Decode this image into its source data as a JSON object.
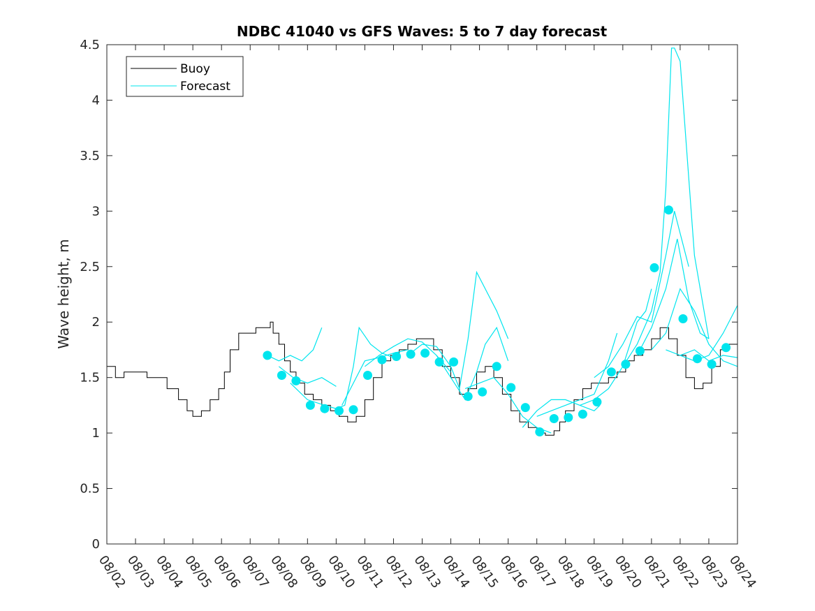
{
  "chart_data": {
    "type": "line",
    "title": "NDBC 41040 vs GFS Waves: 5 to 7 day forecast",
    "xlabel": "",
    "ylabel": "Wave height, m",
    "x_unit": "days since 08/02",
    "xlim": [
      0,
      22
    ],
    "ylim": [
      0,
      4.5
    ],
    "y_ticks": [
      0,
      0.5,
      1,
      1.5,
      2,
      2.5,
      3,
      3.5,
      4,
      4.5
    ],
    "y_tick_labels": [
      "0",
      "0.5",
      "1",
      "1.5",
      "2",
      "2.5",
      "3",
      "3.5",
      "4",
      "4.5"
    ],
    "x_ticks": [
      0,
      1,
      2,
      3,
      4,
      5,
      6,
      7,
      8,
      9,
      10,
      11,
      12,
      13,
      14,
      15,
      16,
      17,
      18,
      19,
      20,
      21,
      22
    ],
    "x_tick_labels": [
      "08/02",
      "08/03",
      "08/04",
      "08/05",
      "08/06",
      "08/07",
      "08/08",
      "08/09",
      "08/10",
      "08/11",
      "08/12",
      "08/13",
      "08/14",
      "08/15",
      "08/16",
      "08/17",
      "08/18",
      "08/19",
      "08/20",
      "08/21",
      "08/22",
      "08/23",
      "08/24"
    ],
    "legend": {
      "position": "top-left",
      "entries": [
        {
          "label": "Buoy",
          "color": "#000000"
        },
        {
          "label": "Forecast",
          "color": "#00e5ee"
        }
      ]
    },
    "colors": {
      "buoy": "#000000",
      "forecast": "#00e5ee",
      "axes": "#262626"
    },
    "buoy": {
      "x": [
        0,
        0.3,
        0.6,
        1.0,
        1.4,
        1.8,
        2.1,
        2.5,
        2.8,
        3.0,
        3.3,
        3.6,
        3.9,
        4.1,
        4.3,
        4.6,
        4.9,
        5.2,
        5.5,
        5.7,
        5.8,
        6.0,
        6.2,
        6.4,
        6.6,
        6.9,
        7.2,
        7.5,
        7.8,
        8.1,
        8.4,
        8.7,
        9.0,
        9.3,
        9.6,
        9.9,
        10.2,
        10.5,
        10.8,
        11.1,
        11.4,
        11.7,
        12.0,
        12.3,
        12.6,
        12.9,
        13.2,
        13.5,
        13.8,
        14.1,
        14.4,
        14.7,
        15.0,
        15.3,
        15.6,
        15.8,
        16.0,
        16.3,
        16.6,
        16.9,
        17.2,
        17.5,
        17.8,
        18.1,
        18.4,
        18.7,
        19.0,
        19.3,
        19.6,
        19.9,
        20.2,
        20.5,
        20.8,
        21.1,
        21.4,
        21.7,
        22.0
      ],
      "y": [
        1.6,
        1.5,
        1.55,
        1.55,
        1.5,
        1.5,
        1.4,
        1.3,
        1.2,
        1.15,
        1.2,
        1.3,
        1.4,
        1.55,
        1.75,
        1.9,
        1.9,
        1.95,
        1.95,
        2.0,
        1.9,
        1.8,
        1.65,
        1.55,
        1.45,
        1.35,
        1.3,
        1.25,
        1.2,
        1.15,
        1.1,
        1.15,
        1.3,
        1.5,
        1.65,
        1.7,
        1.75,
        1.8,
        1.85,
        1.85,
        1.75,
        1.6,
        1.5,
        1.35,
        1.4,
        1.55,
        1.6,
        1.5,
        1.35,
        1.2,
        1.1,
        1.05,
        1.0,
        0.98,
        1.02,
        1.1,
        1.2,
        1.3,
        1.4,
        1.45,
        1.45,
        1.5,
        1.55,
        1.65,
        1.7,
        1.75,
        1.85,
        1.95,
        1.85,
        1.7,
        1.5,
        1.4,
        1.45,
        1.6,
        1.75,
        1.8,
        1.8
      ]
    },
    "forecast_series": [
      {
        "name": "run1",
        "x": [
          5.6,
          6.0,
          6.4,
          6.8,
          7.2,
          7.5
        ],
        "y": [
          1.7,
          1.65,
          1.7,
          1.65,
          1.75,
          1.95
        ]
      },
      {
        "name": "run2",
        "x": [
          6.0,
          6.5,
          7.0,
          7.5,
          8.0
        ],
        "y": [
          1.6,
          1.5,
          1.45,
          1.5,
          1.42
        ]
      },
      {
        "name": "run3",
        "x": [
          6.4,
          7.0,
          7.6,
          8.0,
          8.3,
          8.6,
          8.8,
          9.2,
          9.6,
          10.0
        ],
        "y": [
          1.45,
          1.3,
          1.25,
          1.22,
          1.25,
          1.6,
          1.95,
          1.8,
          1.72,
          1.68
        ]
      },
      {
        "name": "run4",
        "x": [
          8.2,
          8.6,
          9.0,
          9.5,
          10.0,
          10.5
        ],
        "y": [
          1.25,
          1.45,
          1.65,
          1.68,
          1.72,
          1.75
        ]
      },
      {
        "name": "run5",
        "x": [
          9.0,
          9.5,
          10.0,
          10.5,
          11.0,
          11.5,
          12.0
        ],
        "y": [
          1.6,
          1.7,
          1.78,
          1.85,
          1.82,
          1.7,
          1.55
        ]
      },
      {
        "name": "run6",
        "x": [
          10.5,
          11.0,
          11.5,
          12.0,
          12.3,
          12.6,
          12.9,
          13.3,
          13.6,
          14.0
        ],
        "y": [
          1.7,
          1.8,
          1.78,
          1.6,
          1.4,
          1.85,
          2.45,
          2.25,
          2.1,
          1.85
        ]
      },
      {
        "name": "run7",
        "x": [
          11.5,
          12.0,
          12.5,
          12.9,
          13.2,
          13.6,
          14.0
        ],
        "y": [
          1.7,
          1.5,
          1.3,
          1.55,
          1.8,
          1.95,
          1.65
        ]
      },
      {
        "name": "run8",
        "x": [
          12.5,
          13.0,
          13.5,
          14.0,
          14.5,
          15.0,
          15.5
        ],
        "y": [
          1.4,
          1.45,
          1.5,
          1.35,
          1.15,
          1.05,
          1.0
        ]
      },
      {
        "name": "run9",
        "x": [
          14.5,
          15.0,
          15.5,
          16.0,
          16.5,
          17.0,
          17.2
        ],
        "y": [
          1.05,
          1.2,
          1.3,
          1.3,
          1.25,
          1.2,
          1.25
        ]
      },
      {
        "name": "run10",
        "x": [
          15.0,
          15.5,
          16.0,
          16.5,
          17.0,
          17.5,
          17.8
        ],
        "y": [
          1.15,
          1.2,
          1.25,
          1.3,
          1.35,
          1.65,
          1.9
        ]
      },
      {
        "name": "run11",
        "x": [
          16.5,
          17.0,
          17.5,
          18.0,
          18.5,
          18.8,
          19.0
        ],
        "y": [
          1.25,
          1.3,
          1.4,
          1.6,
          2.0,
          2.1,
          2.3
        ]
      },
      {
        "name": "run12",
        "x": [
          17.0,
          17.5,
          18.0,
          18.5,
          19.0,
          19.5,
          19.8,
          20.0,
          20.3
        ],
        "y": [
          1.5,
          1.6,
          1.8,
          2.05,
          2.0,
          2.6,
          3.0,
          2.8,
          2.5
        ]
      },
      {
        "name": "run13",
        "x": [
          18.0,
          18.5,
          19.0,
          19.3,
          19.5,
          19.7,
          19.8,
          20.0,
          20.5,
          21.0
        ],
        "y": [
          1.6,
          1.8,
          2.1,
          2.45,
          3.2,
          4.47,
          4.47,
          4.35,
          2.6,
          1.85
        ]
      },
      {
        "name": "run14",
        "x": [
          18.5,
          19.0,
          19.5,
          19.9,
          20.3,
          20.7,
          21.0
        ],
        "y": [
          1.7,
          1.95,
          2.3,
          2.75,
          2.2,
          1.9,
          1.85
        ]
      },
      {
        "name": "run15",
        "x": [
          19.0,
          19.5,
          20.0,
          20.5,
          21.0,
          21.5,
          22.0
        ],
        "y": [
          1.75,
          1.9,
          2.3,
          2.1,
          1.8,
          1.65,
          1.6
        ]
      },
      {
        "name": "run16",
        "x": [
          20.0,
          20.5,
          21.0,
          21.5,
          22.0
        ],
        "y": [
          1.7,
          1.65,
          1.7,
          1.9,
          2.15
        ]
      },
      {
        "name": "run17",
        "x": [
          19.5,
          20.0,
          20.5,
          21.0,
          21.5,
          22.0
        ],
        "y": [
          1.75,
          1.7,
          1.75,
          1.65,
          1.7,
          1.68
        ]
      }
    ],
    "forecast_points": {
      "x": [
        5.6,
        6.1,
        6.6,
        7.1,
        7.6,
        8.1,
        8.6,
        9.1,
        9.6,
        10.1,
        10.6,
        11.1,
        11.6,
        12.1,
        12.6,
        13.1,
        13.6,
        14.1,
        14.6,
        15.1,
        15.6,
        16.1,
        16.6,
        17.1,
        17.6,
        18.1,
        18.6,
        19.1,
        19.6,
        20.1,
        20.6,
        21.1,
        21.6
      ],
      "y": [
        1.7,
        1.52,
        1.47,
        1.25,
        1.22,
        1.2,
        1.21,
        1.52,
        1.66,
        1.69,
        1.71,
        1.72,
        1.64,
        1.64,
        1.33,
        1.37,
        1.6,
        1.41,
        1.23,
        1.01,
        1.13,
        1.14,
        1.17,
        1.28,
        1.55,
        1.62,
        1.74,
        2.49,
        3.01,
        2.03,
        1.67,
        1.62,
        1.77
      ]
    }
  }
}
